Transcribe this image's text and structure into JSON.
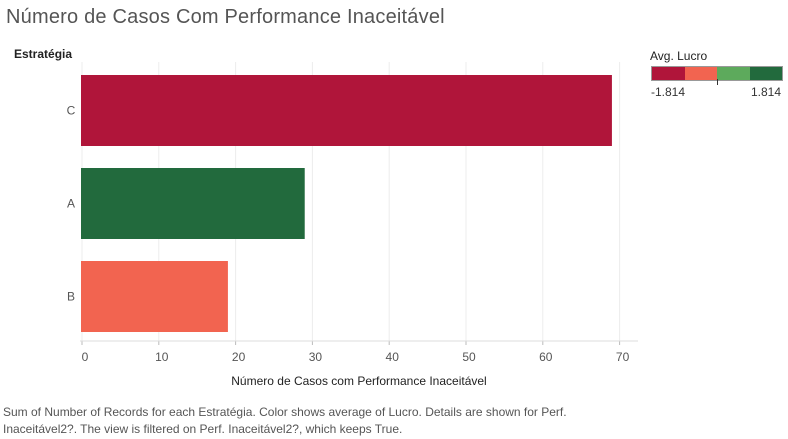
{
  "title": "Número de Casos Com Performance Inaceitável",
  "caption": "Sum of Number of Records for each Estratégia.  Color shows average of Lucro.  Details are shown for Perf. Inaceitável2?. The view is filtered on Perf. Inaceitável2?, which keeps True.",
  "legend": {
    "title": "Avg. Lucro",
    "min_label": "-1.814",
    "max_label": "1.814",
    "colors": [
      "#b0153a",
      "#f26450",
      "#5daa5c",
      "#226a3d"
    ]
  },
  "chart_data": {
    "type": "bar",
    "orientation": "horizontal",
    "row_header": "Estratégia",
    "categories": [
      "C",
      "A",
      "B"
    ],
    "values": [
      69,
      29,
      19
    ],
    "bar_colors": [
      "#b0153a",
      "#226a3d",
      "#f26450"
    ],
    "xlabel": "Número de Casos com Performance Inaceitável",
    "xlim": [
      0,
      75
    ],
    "xticks": [
      0,
      10,
      20,
      30,
      40,
      50,
      60,
      70
    ],
    "grid": true
  }
}
